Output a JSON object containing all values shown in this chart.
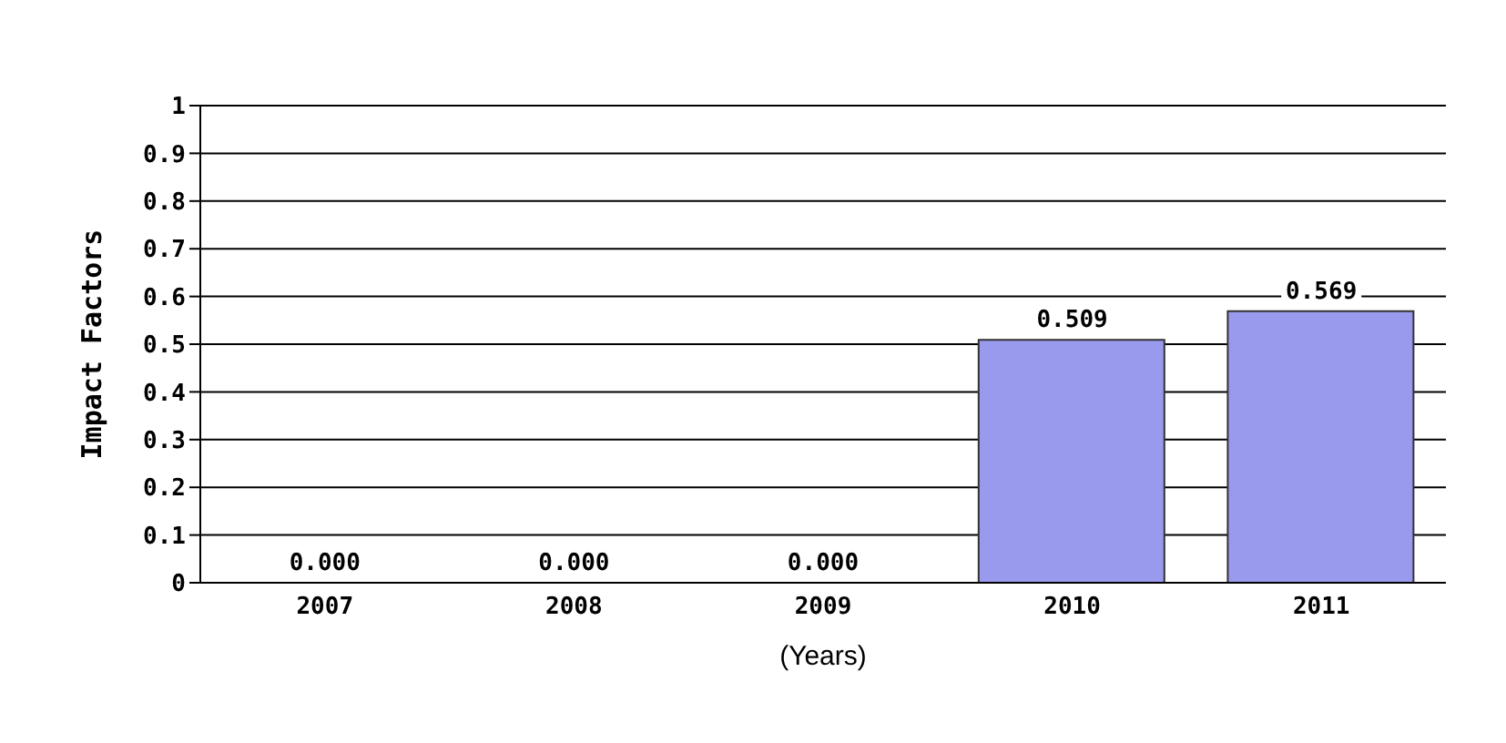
{
  "chart_data": {
    "type": "bar",
    "ylabel": "Impact Factors",
    "xlabel": "(Years)",
    "categories": [
      "2007",
      "2008",
      "2009",
      "2010",
      "2011"
    ],
    "values": [
      0,
      0,
      0,
      0.509,
      0.569
    ],
    "value_labels": [
      "0.000",
      "0.000",
      "0.000",
      "0.509",
      "0.569"
    ],
    "color": "#9999ee",
    "ylim": [
      0,
      1
    ],
    "yticks": [
      0,
      0.1,
      0.2,
      0.3,
      0.4,
      0.5,
      0.6,
      0.7,
      0.8,
      0.9,
      1
    ],
    "grid": "y"
  }
}
